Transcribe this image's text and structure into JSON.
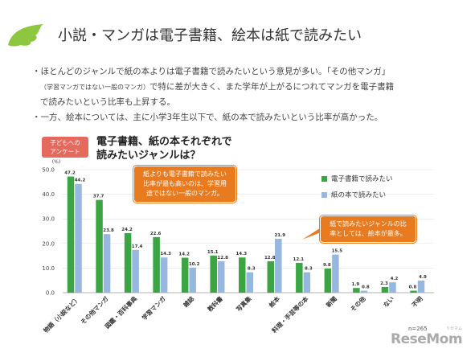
{
  "header": {
    "title": "小説・マンガは電子書籍、絵本は紙で読みたい",
    "leaf_icon": "leaf-icon"
  },
  "bullets": {
    "line1": "・ほとんどのジャンルで紙の本よりは電子書籍で読みたいという意見が多い。「その他マンガ」",
    "line2_small": "（学習マンガではない一般のマンガ）",
    "line2_rest": "で特に差が大きく、また学年が上がるにつれてマンガを電子書籍",
    "line3": "で読みたいという比率も上昇する。",
    "line4": "・一方、絵本については、主に小学3年生以下で、紙の本で読みたいという比率が高かった。"
  },
  "badge": {
    "line1": "子どもへの",
    "line2": "アンケート"
  },
  "chart_title": {
    "line1": "電子書籍、紙の本それぞれで",
    "line2": "読みたいジャンルは？"
  },
  "callouts": {
    "c1": [
      "紙よりも電子書籍で読みたい",
      "比率が最も高いのは、学習用",
      "途ではない一般のマンガ。"
    ],
    "c2": [
      "紙で読みたいジャンルの比",
      "率としては、絵本が最多。"
    ]
  },
  "footnote": "n=265",
  "logo": {
    "main": "ReseMom",
    "sub": "リセマム"
  },
  "colors": {
    "green": "#3aa542",
    "blue": "#96b7e0",
    "orange": "#e87b1f",
    "badge": "#e46a5e",
    "leaf": "#8dc63f"
  },
  "chart_data": {
    "type": "bar",
    "unit": "(%)",
    "ylim": [
      0,
      50
    ],
    "yticks": [
      "0.0",
      "10.0",
      "20.0",
      "30.0",
      "40.0",
      "50.0"
    ],
    "categories": [
      "物語（小説など）",
      "その他マンガ",
      "図鑑・百科事典",
      "学習マンガ",
      "雑誌",
      "教科書",
      "写真集",
      "絵本",
      "料理・手芸等の本",
      "新聞",
      "その他",
      "ない",
      "不明"
    ],
    "series": [
      {
        "name": "電子書籍で読みたい",
        "color": "#3aa542",
        "values": [
          47.2,
          37.7,
          24.2,
          22.6,
          14.2,
          15.1,
          14.3,
          12.8,
          12.1,
          9.8,
          1.9,
          2.3,
          0.8
        ]
      },
      {
        "name": "紙の本で読みたい",
        "color": "#96b7e0",
        "values": [
          44.2,
          23.8,
          17.4,
          14.3,
          10.2,
          12.8,
          8.3,
          21.9,
          8.3,
          15.5,
          0.8,
          4.2,
          4.9
        ]
      }
    ],
    "value_labels": [
      [
        "47.2",
        "37.7",
        "24.2",
        "22.6",
        "14.2",
        "15.1",
        "14.3",
        "12.8",
        "12.1",
        "9.8",
        "1.9",
        "2.3",
        "0.8"
      ],
      [
        "44.2",
        "23.8",
        "17.4",
        "14.3",
        "10.2",
        "12.8",
        "8.3",
        "21.9",
        "8.3",
        "15.5",
        "0.8",
        "4.2",
        "4.9"
      ]
    ],
    "grid": true,
    "legend_position": "right"
  }
}
